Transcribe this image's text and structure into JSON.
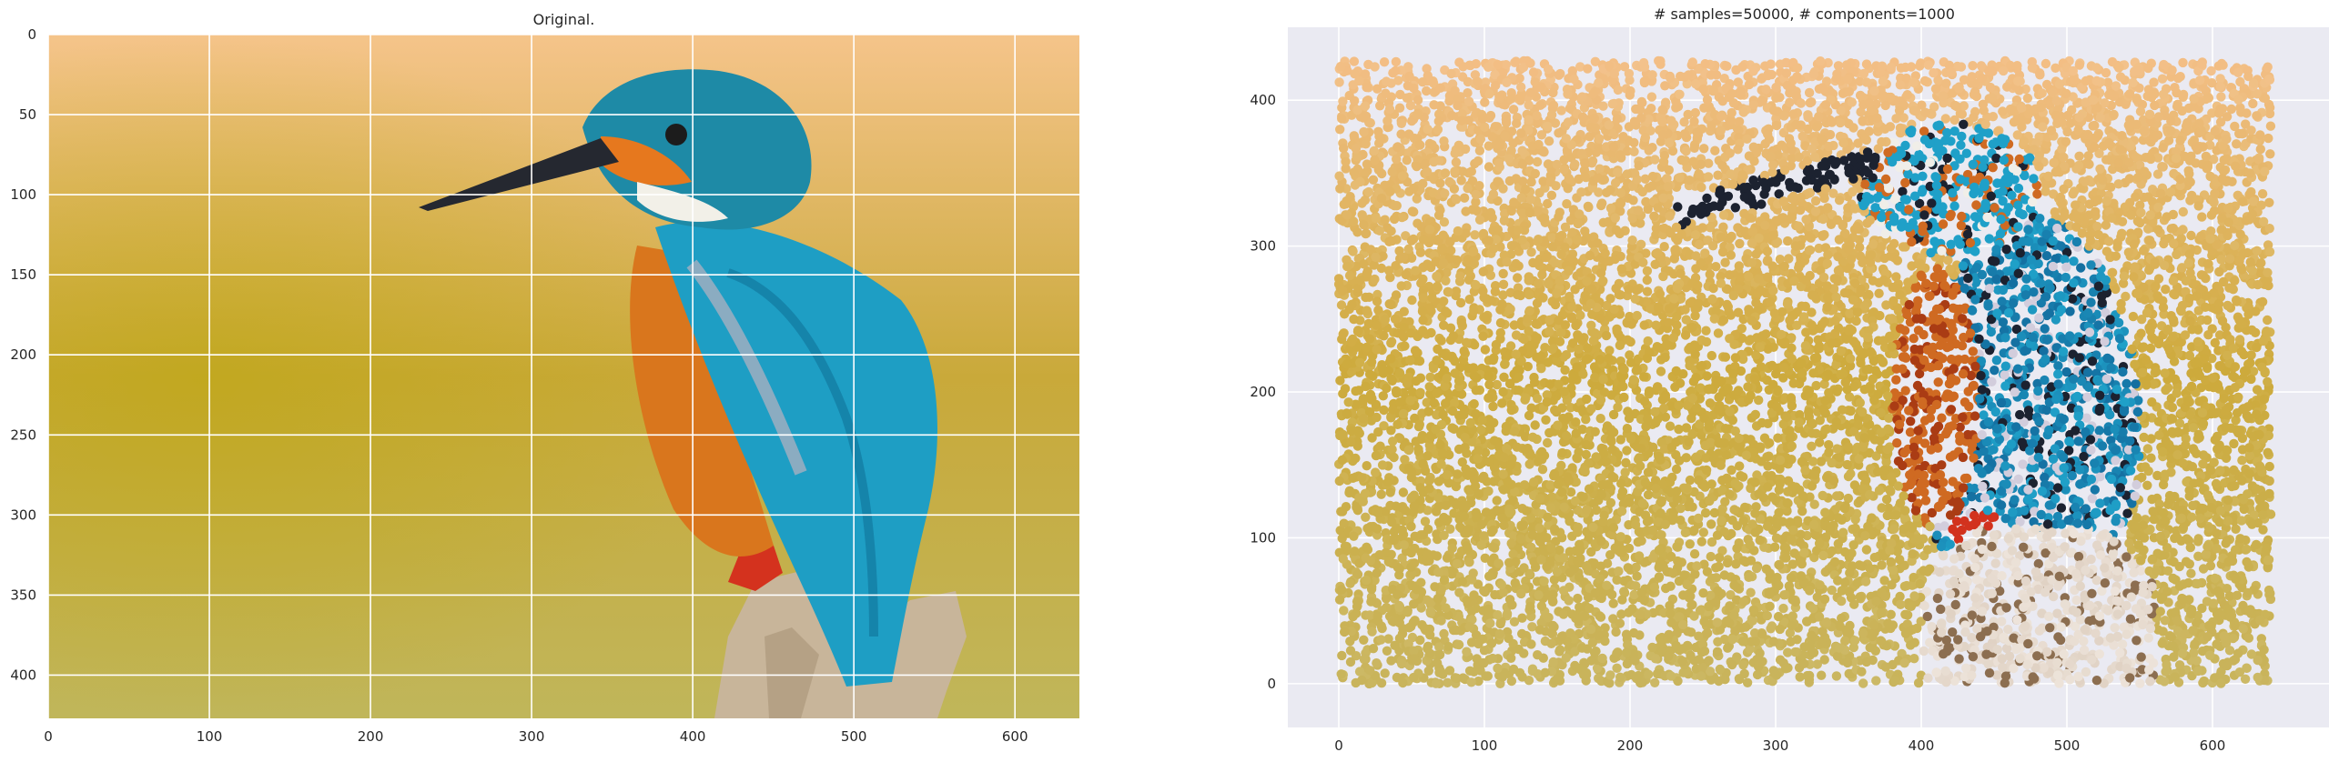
{
  "chart_data": [
    {
      "type": "image",
      "title": "Original.",
      "xlim": [
        0,
        640
      ],
      "ylim": [
        427,
        0
      ],
      "xticks": [
        0,
        100,
        200,
        300,
        400,
        500,
        600
      ],
      "yticks": [
        0,
        50,
        100,
        150,
        200,
        250,
        300,
        350,
        400
      ],
      "grid": true,
      "content": "photograph of a kingfisher perched on a stump against a yellow-orange background",
      "colors": {
        "background_top": "#f5c48a",
        "background_mid": "#c9a93a",
        "background_bottom": "#c0b65a",
        "bird_blue": "#1e9ec4",
        "bird_orange": "#d9761d",
        "perch": "#c8b59a"
      }
    },
    {
      "type": "scatter",
      "title": "# samples=50000, # components=1000",
      "xlim": [
        -35,
        680
      ],
      "ylim": [
        -30,
        450
      ],
      "xticks": [
        0,
        100,
        200,
        300,
        400,
        500,
        600
      ],
      "yticks": [
        0,
        100,
        200,
        300,
        400
      ],
      "grid": true,
      "n_samples": 50000,
      "n_components": 1000,
      "point_domain": {
        "x": [
          0,
          640
        ],
        "y": [
          0,
          427
        ]
      },
      "content": "scatter of sampled points colored by the image, reproducing the kingfisher with y axis flipped",
      "colors": {
        "axes_background": "#eaeaf2",
        "grid": "#ffffff",
        "background_top": "#f3be85",
        "background_mid": "#cdaa3c",
        "background_bottom": "#c9b45c",
        "bird_blue": "#1fa0c8",
        "bird_dark": "#1c2230",
        "bird_orange": "#cf6a22",
        "perch": "#e0d2c4"
      }
    }
  ]
}
